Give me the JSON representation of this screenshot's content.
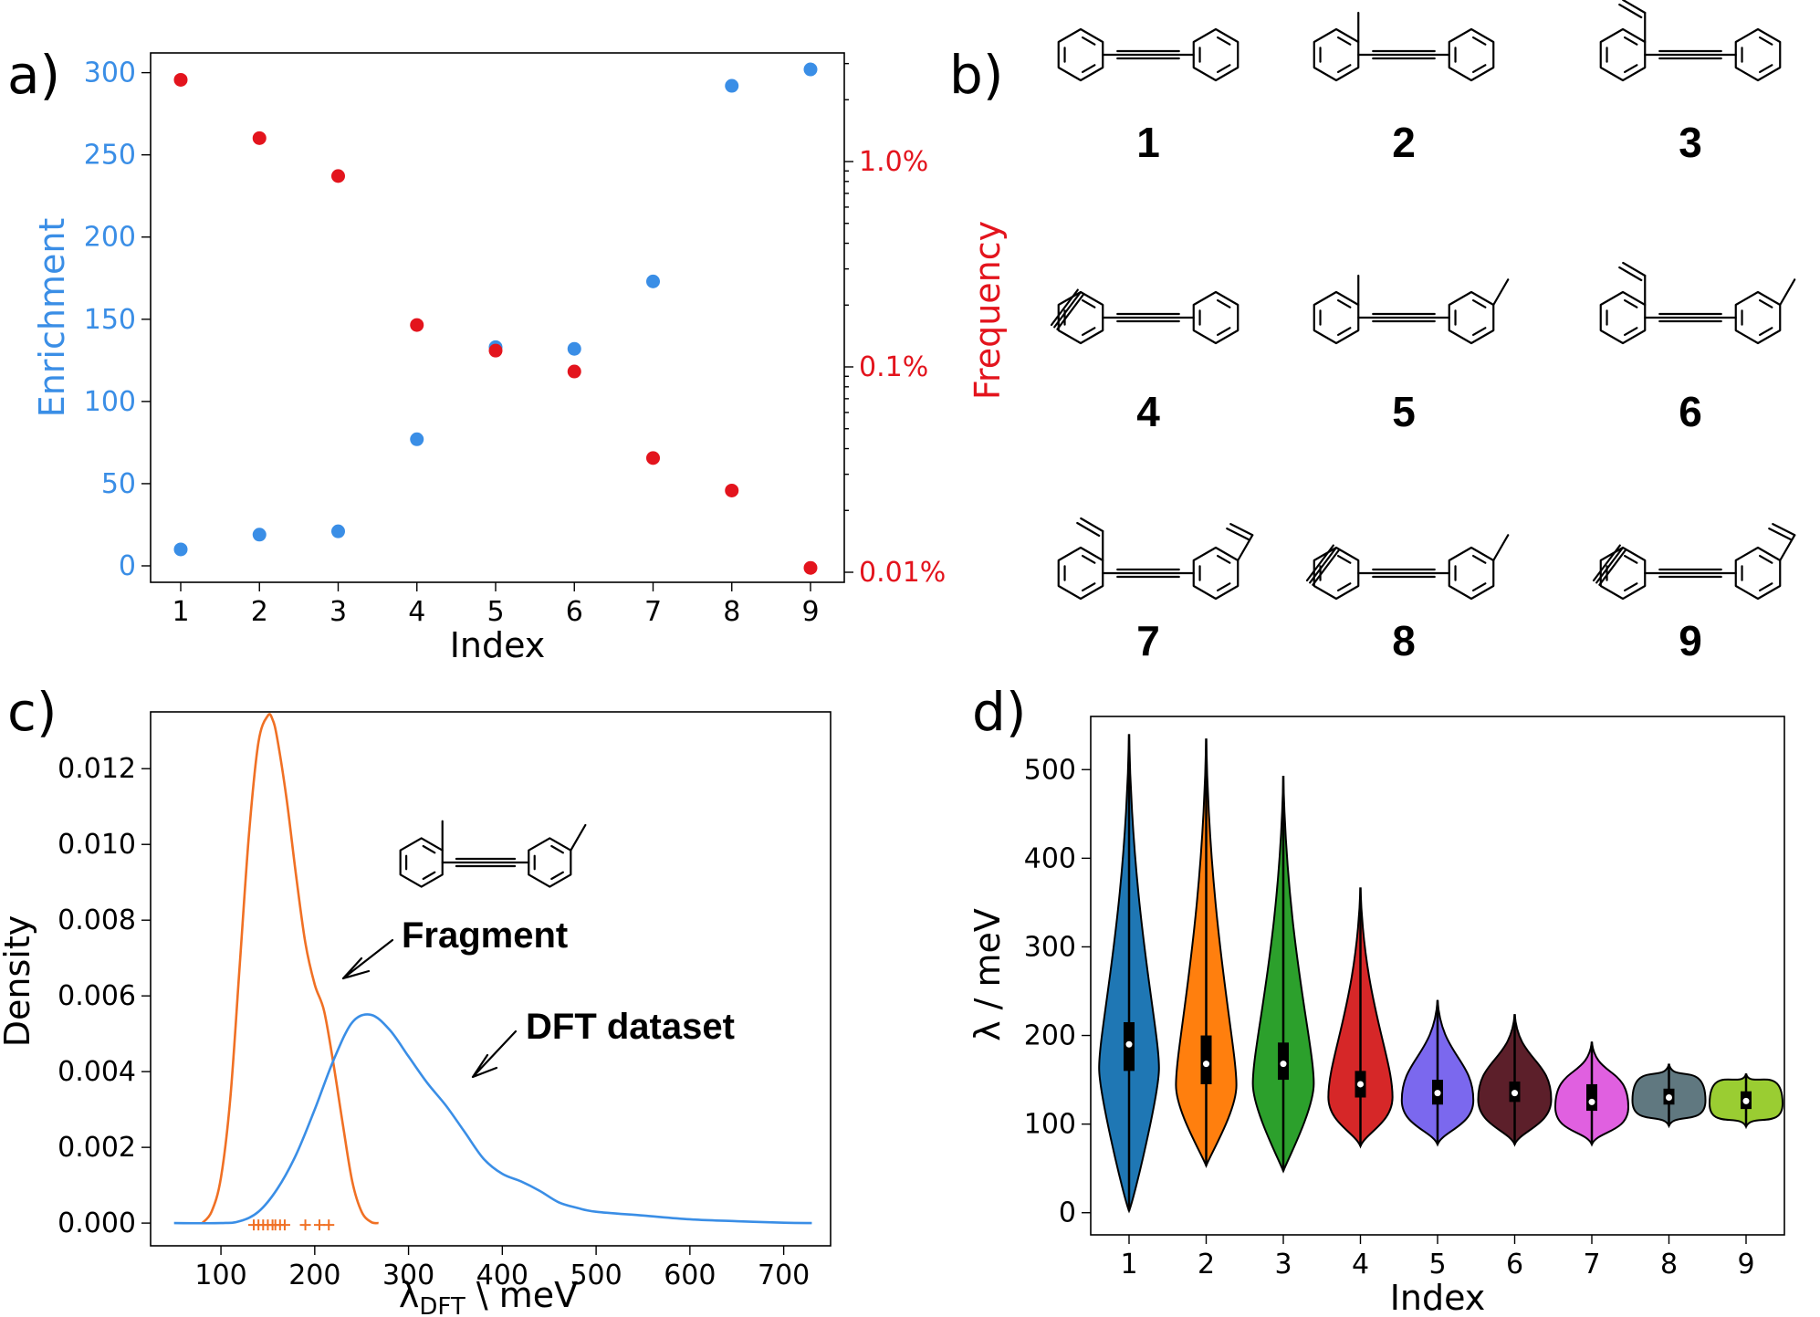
{
  "panels": {
    "a": "a)",
    "b": "b)",
    "c": "c)",
    "d": "d)"
  },
  "colors": {
    "blue": "#3a8ee6",
    "red": "#e3141d",
    "orange": "#f07024",
    "violin": [
      "#1f77b4",
      "#ff7f0e",
      "#2ca02c",
      "#d62728",
      "#7b68ee",
      "#5c1f2a",
      "#e060e0",
      "#607880",
      "#9acd32"
    ]
  },
  "molecules": {
    "labels": [
      "1",
      "2",
      "3",
      "4",
      "5",
      "6",
      "7",
      "8",
      "9"
    ],
    "substituents": [
      [],
      [
        "methyl"
      ],
      [
        "vinyl"
      ],
      [
        "ethynyl"
      ],
      [
        "methyl",
        "methyl"
      ],
      [
        "vinyl",
        "methyl"
      ],
      [
        "vinyl",
        "vinyl"
      ],
      [
        "ethynyl",
        "methyl"
      ],
      [
        "ethynyl",
        "vinyl"
      ]
    ]
  },
  "chart_data": [
    {
      "id": "a",
      "type": "scatter",
      "xlabel": "Index",
      "ylabel": "Enrichment",
      "y2label": "Frequency",
      "x": [
        1,
        2,
        3,
        4,
        5,
        6,
        7,
        8,
        9
      ],
      "xticks": [
        "1",
        "2",
        "3",
        "4",
        "5",
        "6",
        "7",
        "8",
        "9"
      ],
      "ylim": [
        -10,
        312
      ],
      "yticks": [
        "0",
        "50",
        "100",
        "150",
        "200",
        "250",
        "300"
      ],
      "y2scale": "log",
      "y2ticks": [
        "0.01%",
        "0.1%",
        "1.0%"
      ],
      "y2tick_values": [
        0.01,
        0.1,
        1.0
      ],
      "series": [
        {
          "axis": "left",
          "color": "#3a8ee6",
          "values": [
            10,
            19,
            21,
            77,
            133,
            132,
            173,
            292,
            302
          ]
        },
        {
          "axis": "right",
          "color": "#e3141d",
          "values": [
            2.5,
            1.3,
            0.85,
            0.16,
            0.12,
            0.095,
            0.036,
            0.025,
            0.0105
          ]
        }
      ]
    },
    {
      "id": "c",
      "type": "line",
      "xlabel": "λ",
      "xlabel_sub": "DFT",
      "xlabel_unit": " \\ meV",
      "ylabel": "Density",
      "xlim": [
        25,
        750
      ],
      "ylim": [
        -0.0006,
        0.0135
      ],
      "xticks": [
        "100",
        "200",
        "300",
        "400",
        "500",
        "600",
        "700"
      ],
      "yticks": [
        "0.000",
        "0.002",
        "0.004",
        "0.006",
        "0.008",
        "0.010",
        "0.012"
      ],
      "annotations": [
        "Fragment",
        "DFT dataset"
      ],
      "series": [
        {
          "color": "#f07024",
          "x": [
            80,
            90,
            100,
            110,
            120,
            130,
            140,
            150,
            155,
            160,
            170,
            180,
            190,
            200,
            210,
            220,
            230,
            240,
            250,
            260,
            268
          ],
          "values": [
            0,
            0.0003,
            0.0012,
            0.0033,
            0.0068,
            0.0103,
            0.0127,
            0.0134,
            0.0133,
            0.0128,
            0.0112,
            0.0092,
            0.0074,
            0.0063,
            0.0056,
            0.0042,
            0.0026,
            0.0011,
            0.0003,
            3e-05,
            0
          ]
        },
        {
          "color": "#3a8ee6",
          "x": [
            50,
            100,
            120,
            140,
            160,
            180,
            200,
            220,
            240,
            260,
            280,
            300,
            320,
            340,
            360,
            380,
            400,
            420,
            440,
            460,
            480,
            500,
            550,
            600,
            650,
            700,
            730
          ],
          "values": [
            0,
            0,
            5e-05,
            0.0003,
            0.0009,
            0.0018,
            0.003,
            0.0043,
            0.0053,
            0.0055,
            0.0051,
            0.0044,
            0.0037,
            0.0031,
            0.0024,
            0.0017,
            0.0013,
            0.0011,
            0.00085,
            0.00055,
            0.0004,
            0.0003,
            0.0002,
            0.0001,
            5e-05,
            1e-05,
            0
          ]
        }
      ],
      "rug": {
        "color": "#f07024",
        "x": [
          135,
          140,
          145,
          150,
          155,
          158,
          163,
          168,
          190,
          205,
          215
        ]
      }
    },
    {
      "id": "d",
      "type": "violin",
      "xlabel": "Index",
      "ylabel": "λ / meV",
      "categories": [
        "1",
        "2",
        "3",
        "4",
        "5",
        "6",
        "7",
        "8",
        "9"
      ],
      "ylim": [
        -25,
        560
      ],
      "yticks": [
        "0",
        "100",
        "200",
        "300",
        "400",
        "500"
      ],
      "ytick_values": [
        0,
        100,
        200,
        300,
        400,
        500
      ],
      "series": [
        {
          "name": "1",
          "min": 2,
          "max": 540,
          "q1": 160,
          "median": 190,
          "q3": 215
        },
        {
          "name": "2",
          "min": 53,
          "max": 535,
          "q1": 145,
          "median": 168,
          "q3": 200
        },
        {
          "name": "3",
          "min": 47,
          "max": 493,
          "q1": 150,
          "median": 168,
          "q3": 192
        },
        {
          "name": "4",
          "min": 75,
          "max": 367,
          "q1": 130,
          "median": 145,
          "q3": 160
        },
        {
          "name": "5",
          "min": 77,
          "max": 240,
          "q1": 122,
          "median": 135,
          "q3": 150
        },
        {
          "name": "6",
          "min": 77,
          "max": 224,
          "q1": 125,
          "median": 135,
          "q3": 148
        },
        {
          "name": "7",
          "min": 77,
          "max": 193,
          "q1": 115,
          "median": 125,
          "q3": 145
        },
        {
          "name": "8",
          "min": 98,
          "max": 168,
          "q1": 122,
          "median": 130,
          "q3": 140
        },
        {
          "name": "9",
          "min": 97,
          "max": 157,
          "q1": 117,
          "median": 126,
          "q3": 137
        }
      ]
    }
  ]
}
